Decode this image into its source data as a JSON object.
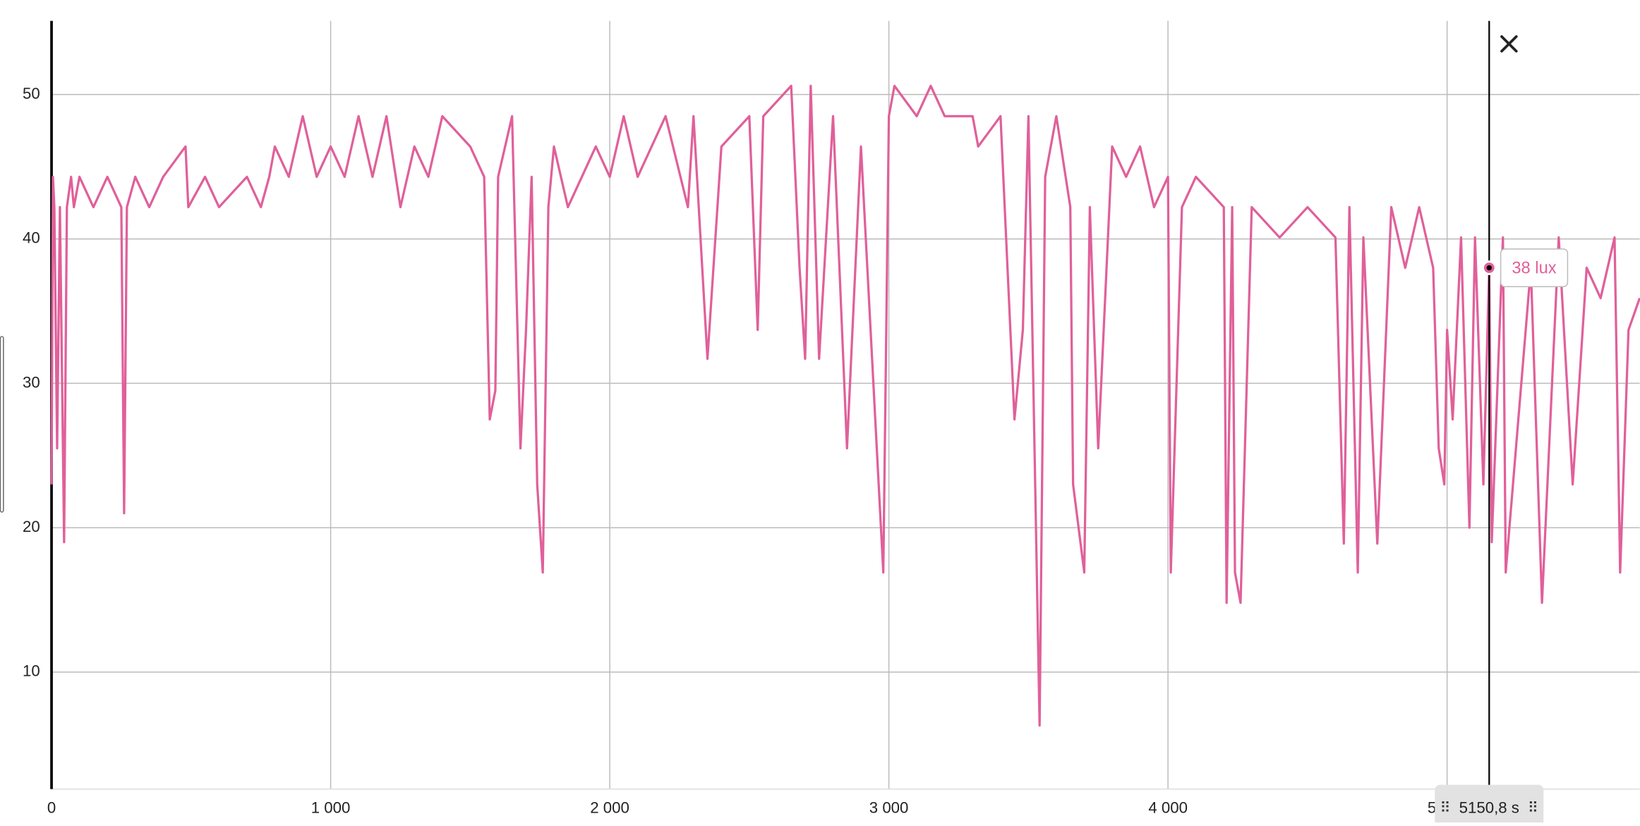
{
  "chart_data": {
    "type": "line",
    "x": [
      0,
      5,
      10,
      20,
      30,
      45,
      55,
      70,
      80,
      100,
      150,
      200,
      250,
      260,
      270,
      300,
      350,
      400,
      480,
      490,
      550,
      600,
      700,
      750,
      780,
      800,
      850,
      900,
      950,
      1000,
      1050,
      1100,
      1150,
      1200,
      1250,
      1300,
      1350,
      1400,
      1500,
      1550,
      1570,
      1590,
      1600,
      1650,
      1680,
      1700,
      1720,
      1740,
      1760,
      1780,
      1800,
      1850,
      1900,
      1950,
      2000,
      2050,
      2100,
      2150,
      2200,
      2280,
      2300,
      2350,
      2400,
      2500,
      2530,
      2550,
      2650,
      2680,
      2700,
      2720,
      2750,
      2800,
      2850,
      2900,
      2980,
      3000,
      3020,
      3100,
      3150,
      3200,
      3300,
      3320,
      3400,
      3450,
      3480,
      3500,
      3540,
      3560,
      3600,
      3650,
      3660,
      3700,
      3720,
      3750,
      3800,
      3850,
      3900,
      3950,
      4000,
      4010,
      4050,
      4100,
      4200,
      4210,
      4230,
      4240,
      4260,
      4300,
      4400,
      4500,
      4600,
      4630,
      4650,
      4680,
      4700,
      4750,
      4800,
      4850,
      4900,
      4950,
      4970,
      4990,
      5000,
      5020,
      5050,
      5080,
      5100,
      5130,
      5150.8,
      5160,
      5200,
      5210,
      5300,
      5340,
      5400,
      5450,
      5500,
      5550,
      5600,
      5620,
      5650,
      5690
    ],
    "series": [
      {
        "color": "#e0609a",
        "values": [
          23,
          44.3,
          42.2,
          25.5,
          42.2,
          19,
          42.2,
          44.3,
          42.2,
          44.3,
          42.2,
          44.3,
          42.2,
          21,
          42.2,
          44.3,
          42.2,
          44.3,
          46.4,
          42.2,
          44.3,
          42.2,
          44.3,
          42.2,
          44.3,
          46.4,
          44.3,
          48.5,
          44.3,
          46.4,
          44.3,
          48.5,
          44.3,
          48.5,
          42.2,
          46.4,
          44.3,
          48.5,
          46.4,
          44.3,
          27.5,
          29.5,
          44.3,
          48.5,
          25.5,
          33.7,
          44.3,
          23,
          16.9,
          42.2,
          46.4,
          42.2,
          44.3,
          46.4,
          44.3,
          48.5,
          44.3,
          46.4,
          48.5,
          42.2,
          48.5,
          31.7,
          46.4,
          48.5,
          33.7,
          48.5,
          50.6,
          38,
          31.7,
          50.6,
          31.7,
          48.5,
          25.5,
          46.4,
          16.9,
          48.5,
          50.6,
          48.5,
          50.6,
          48.5,
          48.5,
          46.4,
          48.5,
          27.5,
          33.7,
          48.5,
          6.3,
          44.3,
          48.5,
          42.2,
          23,
          16.9,
          42.2,
          25.5,
          46.4,
          44.3,
          46.4,
          42.2,
          44.3,
          16.9,
          42.2,
          44.3,
          42.2,
          14.8,
          42.2,
          16.9,
          14.8,
          42.2,
          40.1,
          42.2,
          40.1,
          18.9,
          42.2,
          16.9,
          40.1,
          18.9,
          42.2,
          38,
          42.2,
          38,
          25.5,
          23,
          33.7,
          27.5,
          40.1,
          20,
          40.1,
          23,
          38,
          19,
          40.1,
          16.9,
          38,
          14.8,
          40.1,
          23,
          38,
          35.9,
          40.1,
          16.9,
          33.7,
          35.9
        ]
      }
    ],
    "xlim": [
      0,
      5690
    ],
    "ylim": [
      1.9,
      55.1
    ],
    "xticks": [
      0,
      {
        "value": 1000,
        "label": "1 000"
      },
      {
        "value": 2000,
        "label": "2 000"
      },
      {
        "value": 3000,
        "label": "3 000"
      },
      {
        "value": 4000,
        "label": "4 000"
      },
      {
        "value": 5000,
        "label": "5 000"
      }
    ],
    "yticks": [
      10,
      20,
      30,
      40,
      50
    ],
    "grid": true,
    "cursor": {
      "x": 5150.8,
      "label": "5150,8 s",
      "value": 38,
      "value_label": "38 lux"
    }
  }
}
